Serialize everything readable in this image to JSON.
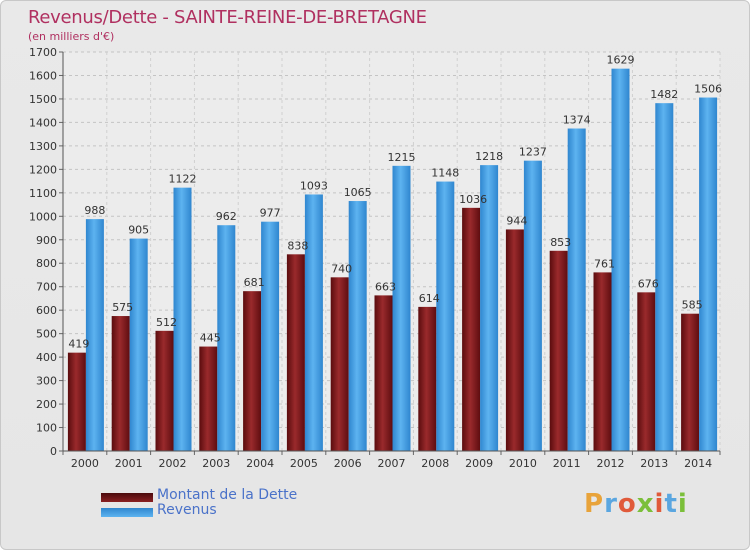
{
  "header": {
    "title": "Revenus/Dette - SAINTE-REINE-DE-BRETAGNE",
    "subtitle": "(en milliers d'€)"
  },
  "legend": [
    {
      "label": "Montant de la Dette",
      "color": "#7a1518"
    },
    {
      "label": "Revenus",
      "color": "#4aa3e6"
    }
  ],
  "logo": {
    "text": "Proxiti"
  },
  "chart_data": {
    "type": "bar",
    "categories": [
      "2000",
      "2001",
      "2002",
      "2003",
      "2004",
      "2005",
      "2006",
      "2007",
      "2008",
      "2009",
      "2010",
      "2011",
      "2012",
      "2013",
      "2014"
    ],
    "series": [
      {
        "name": "Montant de la Dette",
        "values": [
          419,
          575,
          512,
          445,
          681,
          838,
          740,
          663,
          614,
          1036,
          944,
          853,
          761,
          676,
          585
        ],
        "labels": [
          "419",
          "575",
          "512",
          "445",
          "681",
          "838",
          "740",
          "663",
          "614",
          "1036",
          "944",
          "853",
          "761",
          "676",
          "585"
        ],
        "color": "#7a1518"
      },
      {
        "name": "Revenus",
        "values": [
          988,
          905,
          1122,
          962,
          977,
          1093,
          1065,
          1215,
          1148,
          1218,
          1237,
          1374,
          1629,
          1482,
          1506
        ],
        "labels": [
          "988",
          "905",
          "1122",
          "962",
          "977",
          "1093",
          "1065",
          "1215",
          "1148",
          "1218",
          "1237",
          "1374",
          "1629",
          "1482",
          "1506"
        ],
        "color": "#4aa3e6"
      }
    ],
    "title": "Revenus/Dette - SAINTE-REINE-DE-BRETAGNE",
    "ylabel": "(en milliers d'€)",
    "ylim": [
      0,
      1700
    ],
    "yticks": [
      0,
      100,
      200,
      300,
      400,
      500,
      600,
      700,
      800,
      900,
      1000,
      1100,
      1200,
      1300,
      1400,
      1500,
      1600,
      1700
    ],
    "grid": true,
    "legend_position": "bottom-left"
  }
}
